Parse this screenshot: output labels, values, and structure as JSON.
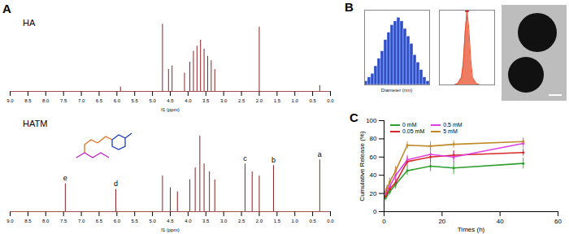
{
  "panel_labels": [
    "A",
    "B",
    "C"
  ],
  "chart_data": [
    {
      "type": "spectrum",
      "title": "HA",
      "x_label": "f1 (ppm)",
      "color": "#8b2323",
      "tick_labels": "x",
      "xlim": [
        9,
        0
      ],
      "xticks": [
        {
          "value": 9,
          "label": "9.0"
        },
        8.5,
        {
          "value": 8,
          "label": "8.0"
        },
        7.5,
        {
          "value": 7,
          "label": "7.0"
        },
        6.5,
        {
          "value": 6,
          "label": "6.0"
        },
        5.5,
        {
          "value": 5,
          "label": "5.0"
        },
        4.5,
        {
          "value": 4,
          "label": "4.0"
        },
        3.5,
        {
          "value": 3,
          "label": "3.0"
        },
        2.5,
        {
          "value": 2,
          "label": "2.0"
        },
        1.5,
        {
          "value": 1,
          "label": "1.0"
        },
        0.5,
        {
          "value": 0,
          "label": "0.0"
        }
      ],
      "ylim": [
        0,
        100
      ],
      "x": [
        5.9,
        4.72,
        4.55,
        4.45,
        4.1,
        3.95,
        3.85,
        3.75,
        3.65,
        3.55,
        3.45,
        3.35,
        3.25,
        2.0,
        0.3
      ],
      "values": [
        6,
        92,
        30,
        35,
        25,
        40,
        55,
        62,
        70,
        58,
        48,
        42,
        30,
        88,
        8
      ]
    },
    {
      "type": "spectrum",
      "title": "HATM",
      "x_label": "f1 (ppm)",
      "color": "#8b2323",
      "tick_labels": "x",
      "xlim": [
        9,
        0
      ],
      "xticks": [
        {
          "value": 9,
          "label": "9.0"
        },
        8.5,
        {
          "value": 8,
          "label": "8.0"
        },
        7.5,
        {
          "value": 7,
          "label": "7.0"
        },
        6.5,
        {
          "value": 6,
          "label": "6.0"
        },
        5.5,
        {
          "value": 5,
          "label": "5.0"
        },
        4.5,
        {
          "value": 4,
          "label": "4.0"
        },
        3.5,
        {
          "value": 3,
          "label": "3.0"
        },
        2.5,
        {
          "value": 2,
          "label": "2.0"
        },
        1.5,
        {
          "value": 1,
          "label": "1.0"
        },
        0.5,
        {
          "value": 0,
          "label": "0.0"
        }
      ],
      "ylim": [
        0,
        100
      ],
      "x": [
        7.45,
        6.03,
        4.72,
        4.5,
        4.3,
        3.95,
        3.8,
        3.67,
        3.55,
        3.4,
        3.25,
        2.4,
        2.2,
        2.0,
        1.6,
        0.3
      ],
      "values": [
        35,
        28,
        45,
        30,
        25,
        40,
        55,
        95,
        60,
        50,
        40,
        60,
        50,
        45,
        58,
        65
      ],
      "annotations": [
        {
          "text": "e",
          "x": 7.45,
          "y": 35
        },
        {
          "text": "d",
          "x": 6.03,
          "y": 28
        },
        {
          "text": "c",
          "x": 2.4,
          "y": 60
        },
        {
          "text": "b",
          "x": 1.6,
          "y": 58
        },
        {
          "text": "a",
          "x": 0.3,
          "y": 65
        }
      ]
    },
    {
      "type": "histogram",
      "x_label": "Diameter (nm)",
      "color": "#2f4fc8",
      "tick_labels": false,
      "xlim": [
        100,
        300
      ],
      "ylim": [
        0,
        20
      ],
      "bins": [
        100,
        110,
        120,
        130,
        140,
        150,
        160,
        170,
        180,
        190,
        200,
        210,
        220,
        230,
        240,
        250,
        260,
        270,
        280,
        290,
        300
      ],
      "counts": [
        1,
        2,
        3,
        5,
        7,
        9,
        12,
        14,
        16,
        17,
        18,
        17,
        15,
        13,
        11,
        8,
        6,
        4,
        2,
        1
      ]
    },
    {
      "type": "area",
      "color": "#e8502e",
      "marker": "square",
      "tick_labels": false,
      "xlim": [
        -100,
        50
      ],
      "ylim": [
        0,
        100
      ],
      "x": [
        -60,
        -50,
        -40,
        -35,
        -30,
        -25,
        -20,
        -15,
        -10,
        0,
        10
      ],
      "values": [
        0,
        2,
        10,
        30,
        70,
        100,
        75,
        35,
        10,
        2,
        0
      ]
    },
    {
      "type": "image"
    },
    {
      "type": "line",
      "x_label": "Times (h)",
      "y_label": "Cumulative Release (%)",
      "legend": "top-left",
      "marker": "circle",
      "xlim": [
        0,
        60
      ],
      "xticks": [
        0,
        20,
        40,
        60
      ],
      "ylim": [
        0,
        100
      ],
      "yticks": [
        0,
        20,
        40,
        60,
        80,
        100
      ],
      "x": [
        0.5,
        1,
        2,
        4,
        8,
        16,
        24,
        48
      ],
      "series": [
        {
          "name": "0 mM",
          "color": "#2ca02c",
          "values": [
            15,
            18,
            22,
            30,
            45,
            50,
            48,
            53
          ],
          "errors": [
            3,
            3,
            4,
            5,
            5,
            6,
            7,
            6
          ]
        },
        {
          "name": "0.05 mM",
          "color": "#d62728",
          "values": [
            17,
            20,
            25,
            32,
            55,
            60,
            62,
            65
          ],
          "errors": [
            3,
            3,
            4,
            5,
            5,
            5,
            5,
            4
          ]
        },
        {
          "name": "0.5 mM",
          "color": "#e040e0",
          "values": [
            20,
            24,
            28,
            40,
            57,
            63,
            60,
            75
          ],
          "errors": [
            3,
            4,
            4,
            9,
            5,
            6,
            6,
            5
          ]
        },
        {
          "name": "5 mM",
          "color": "#c08a2a",
          "values": [
            22,
            26,
            33,
            45,
            73,
            72,
            74,
            77
          ],
          "errors": [
            3,
            3,
            4,
            5,
            4,
            5,
            4,
            4
          ]
        }
      ]
    }
  ]
}
